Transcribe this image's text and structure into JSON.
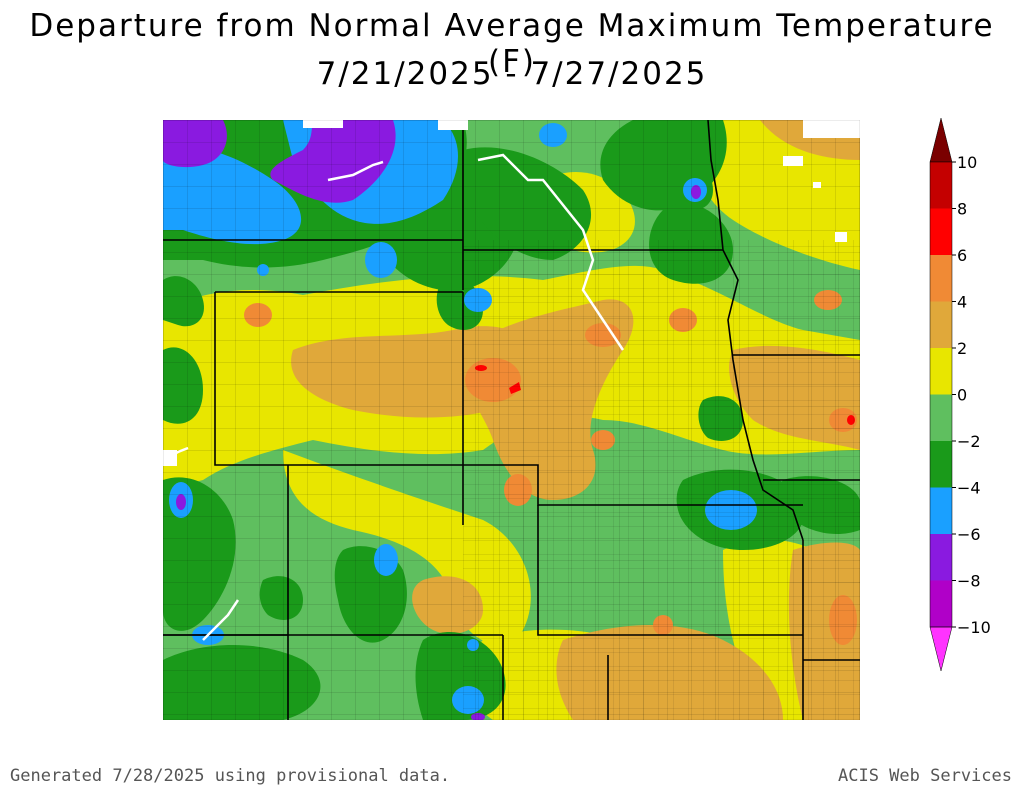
{
  "title": {
    "line1": "Departure from Normal Average Maximum Temperature (F)",
    "line2": "7/21/2025 - 7/27/2025"
  },
  "legend": {
    "ticks": [
      "10",
      "8",
      "6",
      "4",
      "2",
      "0",
      "−2",
      "−4",
      "−6",
      "−8",
      "−10"
    ],
    "bins": [
      {
        "range": "8 to 10",
        "color": "#c40000"
      },
      {
        "range": "6 to 8",
        "color": "#ff0000"
      },
      {
        "range": "4 to 6",
        "color": "#f08a35"
      },
      {
        "range": "2 to 4",
        "color": "#e0a83a"
      },
      {
        "range": "0 to 2",
        "color": "#e8e600"
      },
      {
        "range": "-2 to 0",
        "color": "#5fbf5f"
      },
      {
        "range": "-4 to -2",
        "color": "#1a9a1a"
      },
      {
        "range": "-6 to -4",
        "color": "#1aa0ff"
      },
      {
        "range": "-8 to -6",
        "color": "#8a1ae0"
      },
      {
        "range": "-10 to -8",
        "color": "#b000c8"
      }
    ],
    "top_color": "#7a0000",
    "bottom_color": "#ff33ff"
  },
  "footer": {
    "left": "Generated 7/28/2025 using provisional data.",
    "right": "ACIS Web Services"
  }
}
